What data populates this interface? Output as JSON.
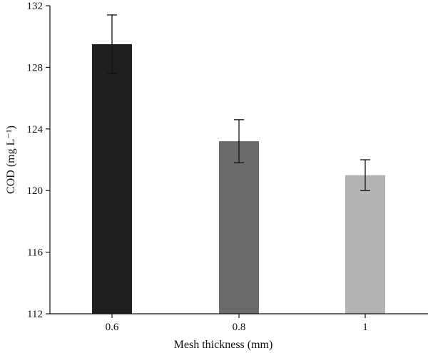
{
  "chart_data": {
    "type": "bar",
    "categories": [
      "0.6",
      "0.8",
      "1"
    ],
    "values": [
      129.5,
      123.2,
      121.0
    ],
    "errors": [
      1.9,
      1.4,
      1.0
    ],
    "colors": [
      "#1e1e1e",
      "#6a6a6a",
      "#b4b4b4"
    ],
    "xlabel": "Mesh thickness (mm)",
    "ylabel": "COD (mg L⁻¹)",
    "ylim": [
      112,
      132
    ],
    "yticks": [
      "112",
      "116",
      "120",
      "124",
      "128",
      "132"
    ],
    "grid": false,
    "legend": "none"
  }
}
